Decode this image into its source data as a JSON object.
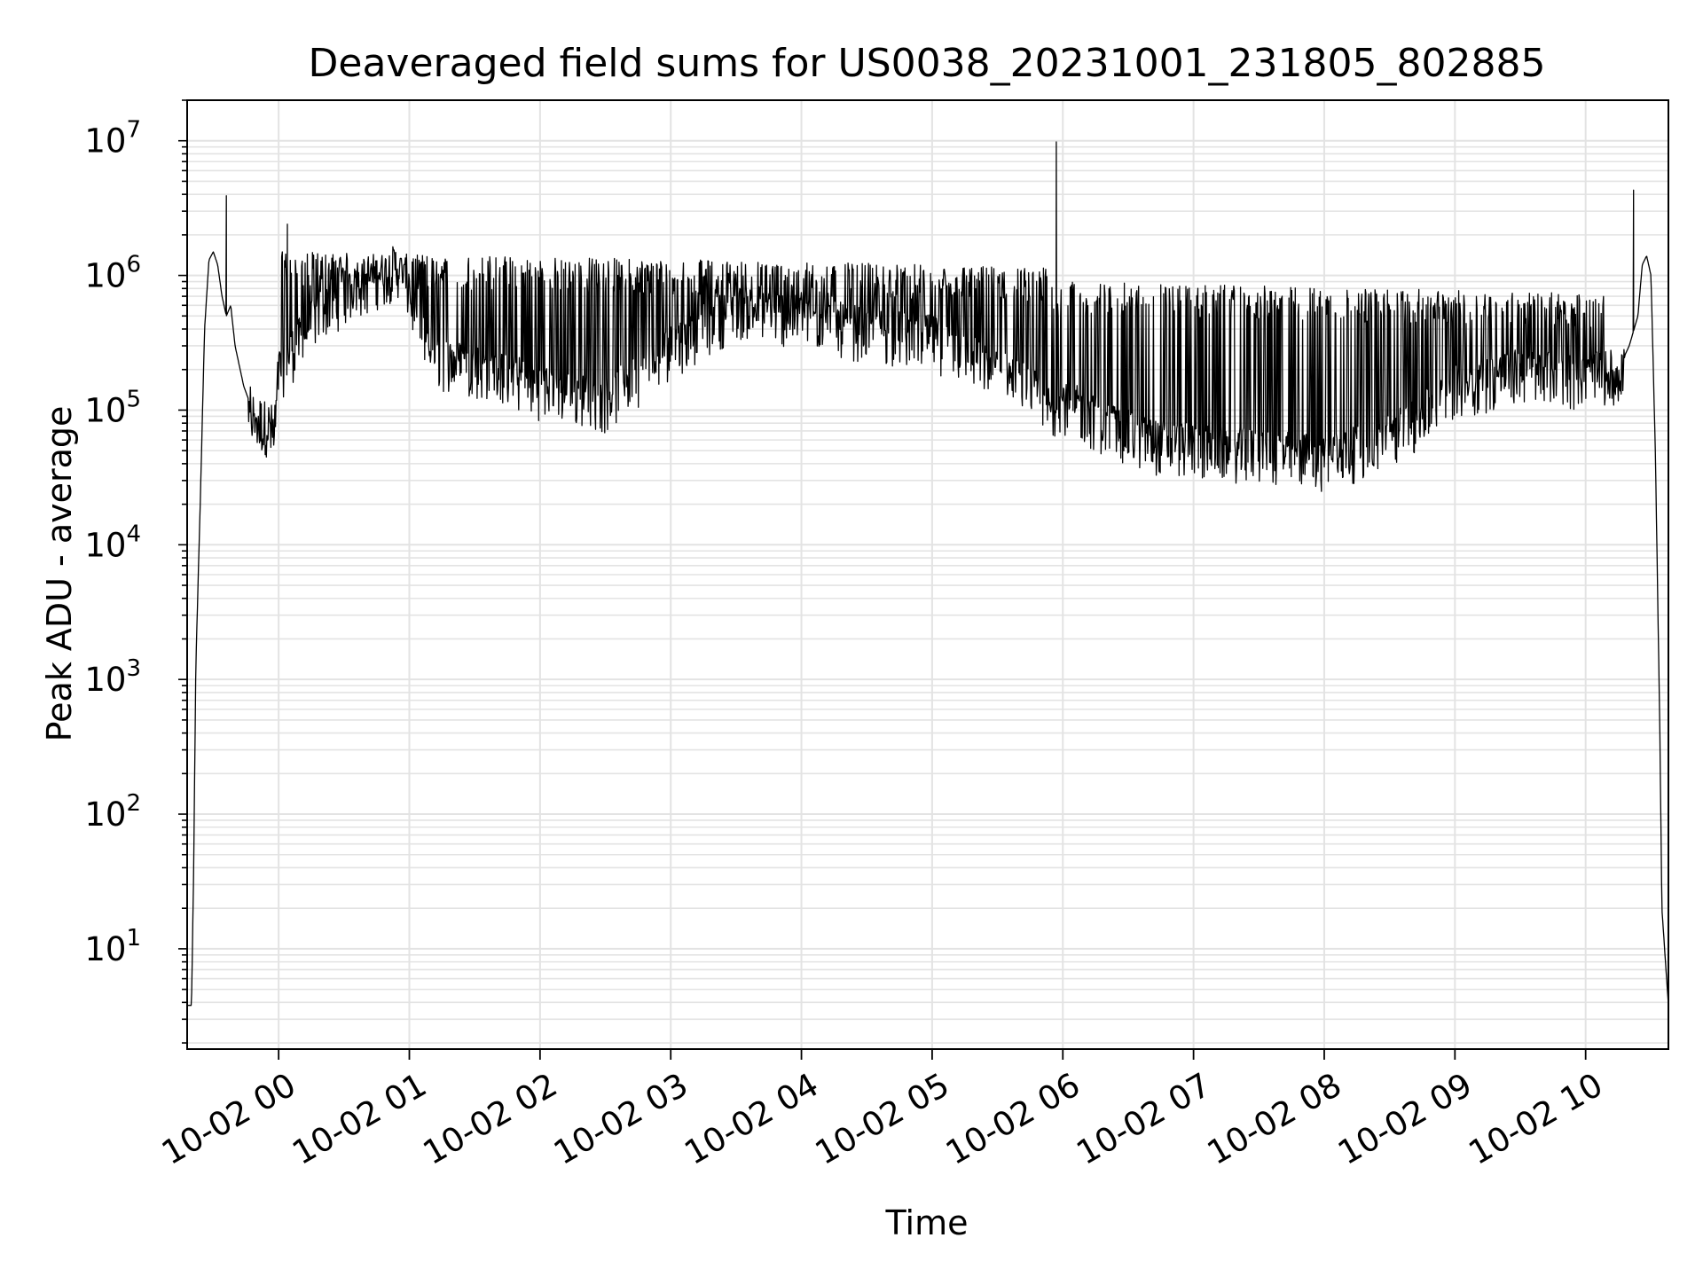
{
  "chart_data": {
    "type": "line",
    "title": "Deaveraged field sums for US0038_20231001_231805_802885",
    "xlabel": "Time",
    "ylabel": "Peak ADU - average",
    "yscale": "log",
    "xlim": [
      "2023-10-01 23:18",
      "2023-10-02 10:38"
    ],
    "ylim": [
      1.8,
      20000000
    ],
    "grid": true,
    "x_ticks": [
      "10-02 00",
      "10-02 01",
      "10-02 02",
      "10-02 03",
      "10-02 04",
      "10-02 05",
      "10-02 06",
      "10-02 07",
      "10-02 08",
      "10-02 09",
      "10-02 10"
    ],
    "y_ticks": [
      {
        "base": "10",
        "exp": "1"
      },
      {
        "base": "10",
        "exp": "2"
      },
      {
        "base": "10",
        "exp": "3"
      },
      {
        "base": "10",
        "exp": "4"
      },
      {
        "base": "10",
        "exp": "5"
      },
      {
        "base": "10",
        "exp": "6"
      },
      {
        "base": "10",
        "exp": "7"
      }
    ],
    "series": [
      {
        "color": "#000000",
        "x": [
          "2023-10-01 23:18",
          "2023-10-01 23:20",
          "2023-10-01 23:21",
          "2023-10-01 23:22",
          "2023-10-01 23:24",
          "2023-10-01 23:26",
          "2023-10-01 23:28",
          "2023-10-01 23:30",
          "2023-10-01 23:32",
          "2023-10-01 23:34",
          "2023-10-01 23:36",
          "2023-10-01 23:38",
          "2023-10-01 23:40",
          "2023-10-01 23:44",
          "2023-10-01 23:48",
          "2023-10-01 23:52",
          "2023-10-01 23:55",
          "2023-10-01 23:58",
          "2023-10-02 00:00",
          "2023-10-02 00:20",
          "2023-10-02 00:40",
          "2023-10-02 00:55",
          "2023-10-02 01:10",
          "2023-10-02 01:40",
          "2023-10-02 02:00",
          "2023-10-02 02:30",
          "2023-10-02 03:00",
          "2023-10-02 03:30",
          "2023-10-02 04:00",
          "2023-10-02 04:30",
          "2023-10-02 05:00",
          "2023-10-02 05:30",
          "2023-10-02 05:45",
          "2023-10-02 05:55",
          "2023-10-02 06:00",
          "2023-10-02 06:20",
          "2023-10-02 06:40",
          "2023-10-02 07:00",
          "2023-10-02 07:30",
          "2023-10-02 08:00",
          "2023-10-02 08:20",
          "2023-10-02 08:40",
          "2023-10-02 09:00",
          "2023-10-02 09:30",
          "2023-10-02 10:00",
          "2023-10-02 10:15",
          "2023-10-02 10:20",
          "2023-10-02 10:24",
          "2023-10-02 10:26",
          "2023-10-02 10:28",
          "2023-10-02 10:30",
          "2023-10-02 10:32",
          "2023-10-02 10:34",
          "2023-10-02 10:35",
          "2023-10-02 10:38"
        ],
        "y": [
          3.8,
          3.8,
          40,
          1300,
          20000,
          400000,
          1300000,
          1500000,
          1200000,
          700000,
          500000,
          600000,
          300000,
          150000,
          100000,
          85000,
          80000,
          75000,
          200000,
          600000,
          900000,
          1200000,
          250000,
          200000,
          150000,
          120000,
          300000,
          600000,
          500000,
          400000,
          350000,
          200000,
          150000,
          100000,
          120000,
          80000,
          60000,
          55000,
          50000,
          45000,
          55000,
          80000,
          150000,
          200000,
          180000,
          200000,
          300000,
          500000,
          1200000,
          1400000,
          1000000,
          50000,
          500,
          20,
          3.8
        ]
      }
    ],
    "peaks": [
      {
        "x": "2023-10-01 23:36",
        "y": 3900000
      },
      {
        "x": "2023-10-02 00:04",
        "y": 2400000
      },
      {
        "x": "2023-10-02 05:57",
        "y": 9800000
      },
      {
        "x": "2023-10-02 10:22",
        "y": 4300000
      }
    ]
  }
}
